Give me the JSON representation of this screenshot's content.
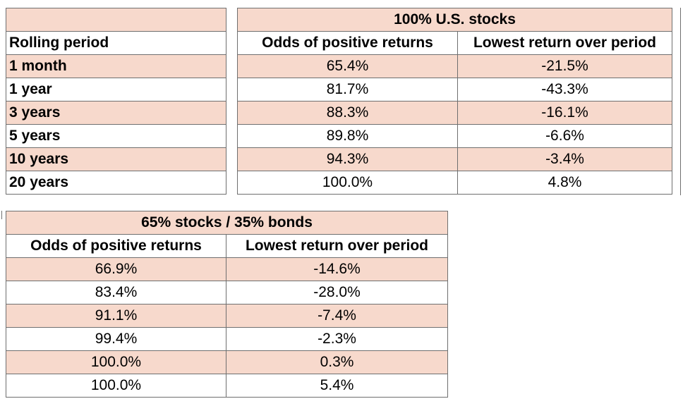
{
  "table1": {
    "group_header": "100% U.S. stocks",
    "headers": [
      "Rolling period",
      "Odds of positive returns",
      "Lowest return over period"
    ],
    "rows": [
      {
        "period": "1 month",
        "odds": "65.4%",
        "lowest": "-21.5%"
      },
      {
        "period": "1 year",
        "odds": "81.7%",
        "lowest": "-43.3%"
      },
      {
        "period": "3 years",
        "odds": "88.3%",
        "lowest": "-16.1%"
      },
      {
        "period": "5 years",
        "odds": "89.8%",
        "lowest": "-6.6%"
      },
      {
        "period": "10 years",
        "odds": "94.3%",
        "lowest": "-3.4%"
      },
      {
        "period": "20 years",
        "odds": "100.0%",
        "lowest": "4.8%"
      }
    ]
  },
  "table2": {
    "group_header": "65% stocks / 35% bonds",
    "headers": [
      "Odds of positive returns",
      "Lowest return over period"
    ],
    "rows": [
      {
        "odds": "66.9%",
        "lowest": "-14.6%"
      },
      {
        "odds": "83.4%",
        "lowest": "-28.0%"
      },
      {
        "odds": "91.1%",
        "lowest": "-7.4%"
      },
      {
        "odds": "99.4%",
        "lowest": "-2.3%"
      },
      {
        "odds": "100.0%",
        "lowest": "0.3%"
      },
      {
        "odds": "100.0%",
        "lowest": "5.4%"
      }
    ]
  },
  "colors": {
    "row_highlight": "#f7d9cc",
    "border": "#6f6f6f"
  }
}
